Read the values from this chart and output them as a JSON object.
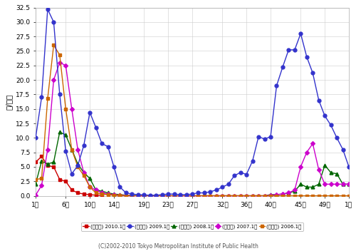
{
  "ylabel": "人/定点",
  "footer": "(C)2002-2010 Tokyo Metropolitan Institute of Public Health",
  "ylim": [
    0.0,
    32.5
  ],
  "yticks": [
    0.0,
    2.5,
    5.0,
    7.5,
    10.0,
    12.5,
    15.0,
    17.5,
    20.0,
    22.5,
    25.0,
    27.5,
    30.0,
    32.5
  ],
  "xtick_labels": [
    "1週",
    "6週",
    "10週",
    "14週",
    "19週",
    "23週",
    "27週",
    "32週",
    "36週",
    "40週",
    "45週",
    "49週",
    "1週"
  ],
  "xtick_positions": [
    1,
    6,
    10,
    14,
    19,
    23,
    27,
    32,
    36,
    40,
    45,
    49,
    53
  ],
  "xlim": [
    1,
    53
  ],
  "series": {
    "2010": {
      "label": "(東京都) 2010.1～",
      "color": "#cc0000",
      "marker": "s",
      "markersize": 3.5,
      "linewidth": 1.0,
      "data_x": [
        1,
        2,
        3,
        4,
        5,
        6,
        7,
        8,
        9,
        10,
        11,
        12
      ],
      "data_y": [
        5.8,
        6.8,
        5.2,
        5.0,
        2.8,
        2.5,
        1.0,
        0.5,
        0.3,
        0.2,
        0.1,
        0.1
      ]
    },
    "2009": {
      "label": "(東京都) 2009.1～",
      "color": "#3333cc",
      "marker": "o",
      "markersize": 3.5,
      "linewidth": 1.0,
      "data_x": [
        1,
        2,
        3,
        4,
        5,
        6,
        7,
        8,
        9,
        10,
        11,
        12,
        13,
        14,
        15,
        16,
        17,
        18,
        19,
        20,
        21,
        22,
        23,
        24,
        25,
        26,
        27,
        28,
        29,
        30,
        31,
        32,
        33,
        34,
        35,
        36,
        37,
        38,
        39,
        40,
        41,
        42,
        43,
        44,
        45,
        46,
        47,
        48,
        49,
        50,
        51,
        52,
        53
      ],
      "data_y": [
        10.0,
        17.0,
        32.2,
        30.0,
        17.5,
        7.7,
        3.8,
        5.2,
        8.7,
        14.4,
        11.8,
        9.0,
        8.5,
        5.0,
        1.5,
        0.5,
        0.3,
        0.2,
        0.15,
        0.1,
        0.1,
        0.2,
        0.3,
        0.3,
        0.2,
        0.2,
        0.3,
        0.5,
        0.5,
        0.7,
        1.0,
        1.5,
        2.0,
        3.5,
        4.0,
        3.7,
        6.0,
        10.2,
        9.8,
        10.2,
        19.0,
        22.2,
        25.2,
        25.2,
        28.0,
        24.0,
        21.2,
        16.5,
        13.8,
        12.2,
        10.0,
        8.0,
        5.0
      ]
    },
    "2008": {
      "label": "(東京都) 2008.1～",
      "color": "#006600",
      "marker": "^",
      "markersize": 3.5,
      "linewidth": 1.0,
      "data_x": [
        1,
        2,
        3,
        4,
        5,
        6,
        7,
        8,
        9,
        10,
        11,
        12,
        13,
        14,
        15,
        16,
        17,
        18,
        19,
        20,
        21,
        22,
        23,
        24,
        25,
        26,
        27,
        28,
        29,
        30,
        31,
        32,
        33,
        34,
        35,
        36,
        37,
        38,
        39,
        40,
        41,
        42,
        43,
        44,
        45,
        46,
        47,
        48,
        49,
        50,
        51,
        52,
        53
      ],
      "data_y": [
        2.0,
        6.0,
        5.5,
        5.8,
        11.0,
        10.5,
        8.0,
        5.5,
        4.0,
        3.0,
        1.0,
        0.8,
        0.5,
        0.3,
        0.2,
        0.1,
        0.05,
        0.05,
        0.05,
        0.0,
        0.0,
        0.0,
        0.0,
        0.0,
        0.0,
        0.0,
        0.0,
        0.0,
        0.0,
        0.0,
        0.0,
        0.0,
        0.0,
        0.0,
        0.0,
        0.0,
        0.0,
        0.0,
        0.0,
        0.2,
        0.2,
        0.3,
        0.5,
        0.8,
        2.0,
        1.5,
        1.5,
        2.0,
        5.3,
        4.0,
        3.8,
        2.0,
        2.0
      ]
    },
    "2007": {
      "label": "(東京都) 2007.1～",
      "color": "#cc00cc",
      "marker": "D",
      "markersize": 3.0,
      "linewidth": 1.0,
      "data_x": [
        1,
        2,
        3,
        4,
        5,
        6,
        7,
        8,
        9,
        10,
        11,
        12,
        13,
        14,
        15,
        16,
        17,
        18,
        19,
        20,
        21,
        22,
        23,
        24,
        25,
        26,
        27,
        28,
        29,
        30,
        31,
        32,
        33,
        34,
        35,
        36,
        37,
        38,
        39,
        40,
        41,
        42,
        43,
        44,
        45,
        46,
        47,
        48,
        49,
        50,
        51,
        52,
        53
      ],
      "data_y": [
        0.1,
        1.8,
        8.0,
        20.0,
        23.0,
        22.5,
        15.0,
        8.0,
        4.0,
        1.5,
        1.0,
        0.5,
        0.3,
        0.2,
        0.1,
        0.05,
        0.0,
        0.0,
        0.0,
        0.0,
        0.0,
        0.0,
        0.0,
        0.0,
        0.0,
        0.0,
        0.0,
        0.0,
        0.0,
        0.0,
        0.0,
        0.0,
        0.0,
        0.0,
        0.0,
        0.0,
        0.0,
        0.0,
        0.0,
        0.1,
        0.2,
        0.3,
        0.5,
        1.0,
        5.0,
        7.5,
        9.0,
        4.5,
        2.0,
        2.0,
        2.0,
        2.0,
        2.0
      ]
    },
    "2006": {
      "label": "(東京都) 2006.1～",
      "color": "#cc6600",
      "marker": "s",
      "markersize": 3.0,
      "linewidth": 1.0,
      "data_x": [
        1,
        2,
        3,
        4,
        5,
        6,
        7,
        8,
        9,
        10,
        11,
        12,
        13,
        14,
        15,
        16,
        17,
        18,
        19,
        20,
        21,
        22,
        23,
        24,
        25,
        26,
        27,
        28,
        29,
        30,
        31,
        32,
        33,
        34,
        35,
        36,
        37,
        38,
        39,
        40,
        41,
        42,
        43,
        44,
        45,
        46,
        47,
        48,
        49,
        50,
        51,
        52,
        53
      ],
      "data_y": [
        2.8,
        3.0,
        16.8,
        26.0,
        24.3,
        15.0,
        8.0,
        5.0,
        3.5,
        1.5,
        0.5,
        0.3,
        0.2,
        0.1,
        0.05,
        0.0,
        0.0,
        0.0,
        0.0,
        0.0,
        0.0,
        0.0,
        0.0,
        0.0,
        0.0,
        0.0,
        0.0,
        0.0,
        0.0,
        0.0,
        0.0,
        0.0,
        0.0,
        0.0,
        0.0,
        0.0,
        0.0,
        0.0,
        0.0,
        0.0,
        0.0,
        0.0,
        0.0,
        0.0,
        0.0,
        0.0,
        0.0,
        0.0,
        0.0,
        0.0,
        0.0,
        0.0,
        0.0
      ]
    }
  },
  "background_color": "#ffffff",
  "grid_color": "#cccccc",
  "series_order": [
    "2010",
    "2009",
    "2008",
    "2007",
    "2006"
  ]
}
